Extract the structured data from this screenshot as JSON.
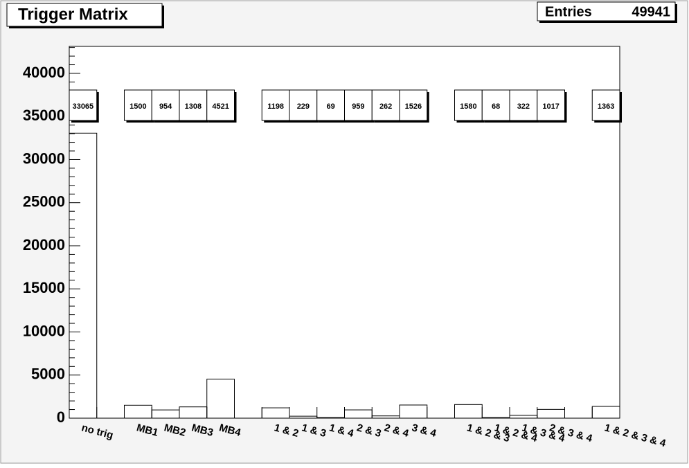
{
  "chart_data": {
    "type": "histogram",
    "title": "Trigger Matrix",
    "stats": {
      "label": "Entries",
      "value": 49941
    },
    "categories": [
      "no trig",
      null,
      "MB1",
      "MB2",
      "MB3",
      "MB4",
      null,
      "1 & 2",
      "1 & 3",
      "1 & 4",
      "2 & 3",
      "2 & 4",
      "3 & 4",
      null,
      "1 & 2 & 3",
      "1 & 2 & 4",
      "1 & 3 & 4",
      "2 & 3 & 4",
      null,
      "1 & 2 & 3 & 4"
    ],
    "values": [
      33065,
      null,
      1500,
      954,
      1308,
      4521,
      null,
      1198,
      229,
      69,
      959,
      262,
      1526,
      null,
      1580,
      68,
      322,
      1017,
      null,
      1363
    ],
    "color": "#000000",
    "ylim": [
      0,
      43130
    ],
    "yticks": [
      0,
      5000,
      10000,
      15000,
      20000,
      25000,
      30000,
      35000,
      40000
    ]
  }
}
